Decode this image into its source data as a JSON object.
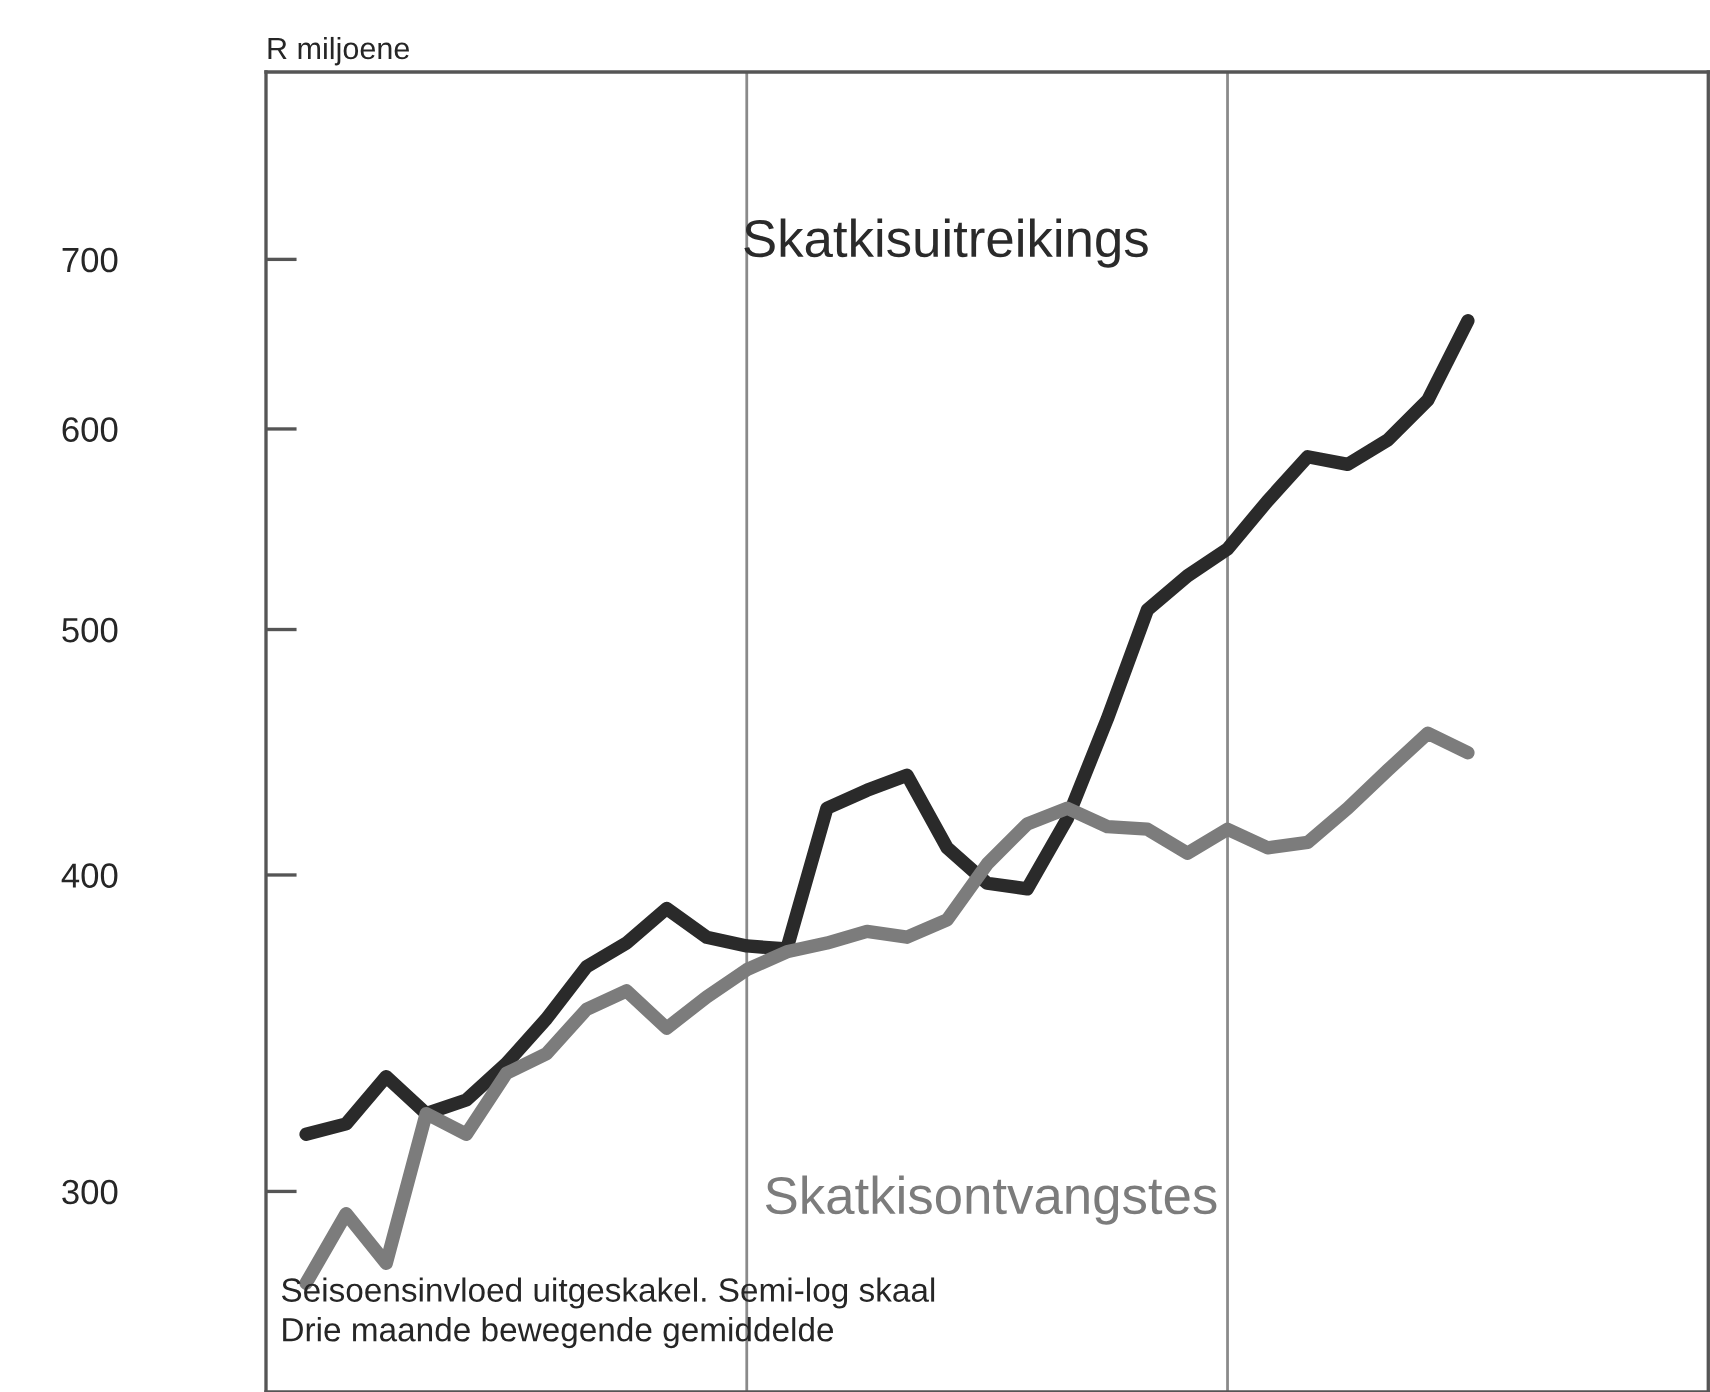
{
  "chart_data": {
    "type": "line",
    "ylabel": "R miljoene",
    "log": "y",
    "categories": [
      null,
      null,
      null,
      null,
      null,
      null,
      null,
      null,
      null,
      null,
      null,
      null,
      null,
      null,
      null,
      null,
      null,
      null,
      null,
      null,
      null,
      null,
      null,
      null,
      null,
      null,
      null,
      null,
      null,
      null
    ],
    "series": [
      {
        "name": "Skatkisuitreikings",
        "color": "#2a2a2a",
        "values": [
          316,
          319,
          333,
          322,
          326,
          337,
          351,
          368,
          376,
          388,
          378,
          375,
          374,
          425,
          432,
          438,
          410,
          397,
          395,
          421,
          461,
          509,
          525,
          538,
          562,
          585,
          581,
          594,
          616,
          662
        ]
      },
      {
        "name": "Skatkisontvangstes",
        "color": "#7c7c7c",
        "values": [
          276,
          294,
          281,
          322,
          316,
          334,
          340,
          354,
          360,
          348,
          358,
          367,
          373,
          376,
          380,
          378,
          384,
          404,
          419,
          425,
          418,
          417,
          408,
          417,
          410,
          412,
          425,
          440,
          455,
          447
        ]
      }
    ],
    "ylim": [
      250,
      830
    ],
    "yticks": [
      300,
      400,
      500,
      600,
      700
    ],
    "tick_labels": "y",
    "line_style": "solid",
    "annotations": [
      "Seisoensinvloed uitgeskakel. Semi-log skaal",
      "Drie maande bewegende gemiddelde"
    ]
  }
}
